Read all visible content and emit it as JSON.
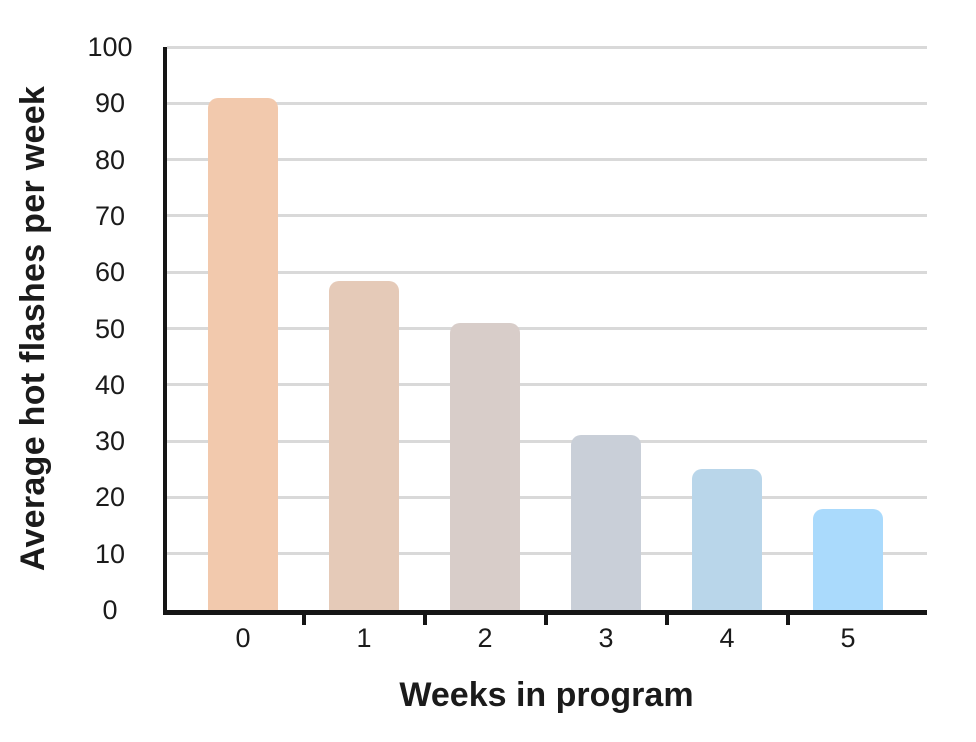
{
  "chart_data": {
    "type": "bar",
    "categories": [
      "0",
      "1",
      "2",
      "3",
      "4",
      "5"
    ],
    "values": [
      91,
      58.5,
      51,
      31,
      25,
      18
    ],
    "bar_colors": [
      "#f2c9ad",
      "#e5cab8",
      "#d8cdc9",
      "#c9cfd8",
      "#b9d6ea",
      "#aadafc"
    ],
    "xlabel": "Weeks in program",
    "ylabel": "Average hot flashes per week",
    "ylim": [
      0,
      100
    ],
    "yticks": [
      0,
      10,
      20,
      30,
      40,
      50,
      60,
      70,
      80,
      90,
      100
    ],
    "grid": true,
    "grid_color": "#d9d9d9",
    "axis_color": "#151515",
    "text_color": "#1b1b1b",
    "legend": false
  }
}
